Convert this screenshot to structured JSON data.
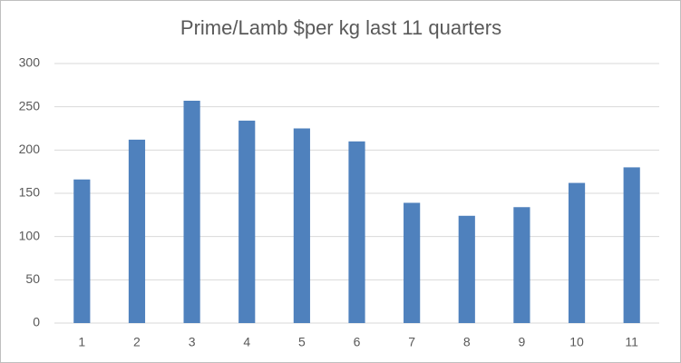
{
  "chart_data": {
    "type": "bar",
    "title": "Prime/Lamb $per kg last 11 quarters",
    "categories": [
      "1",
      "2",
      "3",
      "4",
      "5",
      "6",
      "7",
      "8",
      "9",
      "10",
      "11"
    ],
    "values": [
      166,
      212,
      257,
      234,
      225,
      210,
      139,
      124,
      134,
      162,
      180
    ],
    "color": "#4f81bd",
    "ylim": [
      0,
      300
    ],
    "yticks": [
      0,
      50,
      100,
      150,
      200,
      250,
      300
    ],
    "grid": true
  }
}
